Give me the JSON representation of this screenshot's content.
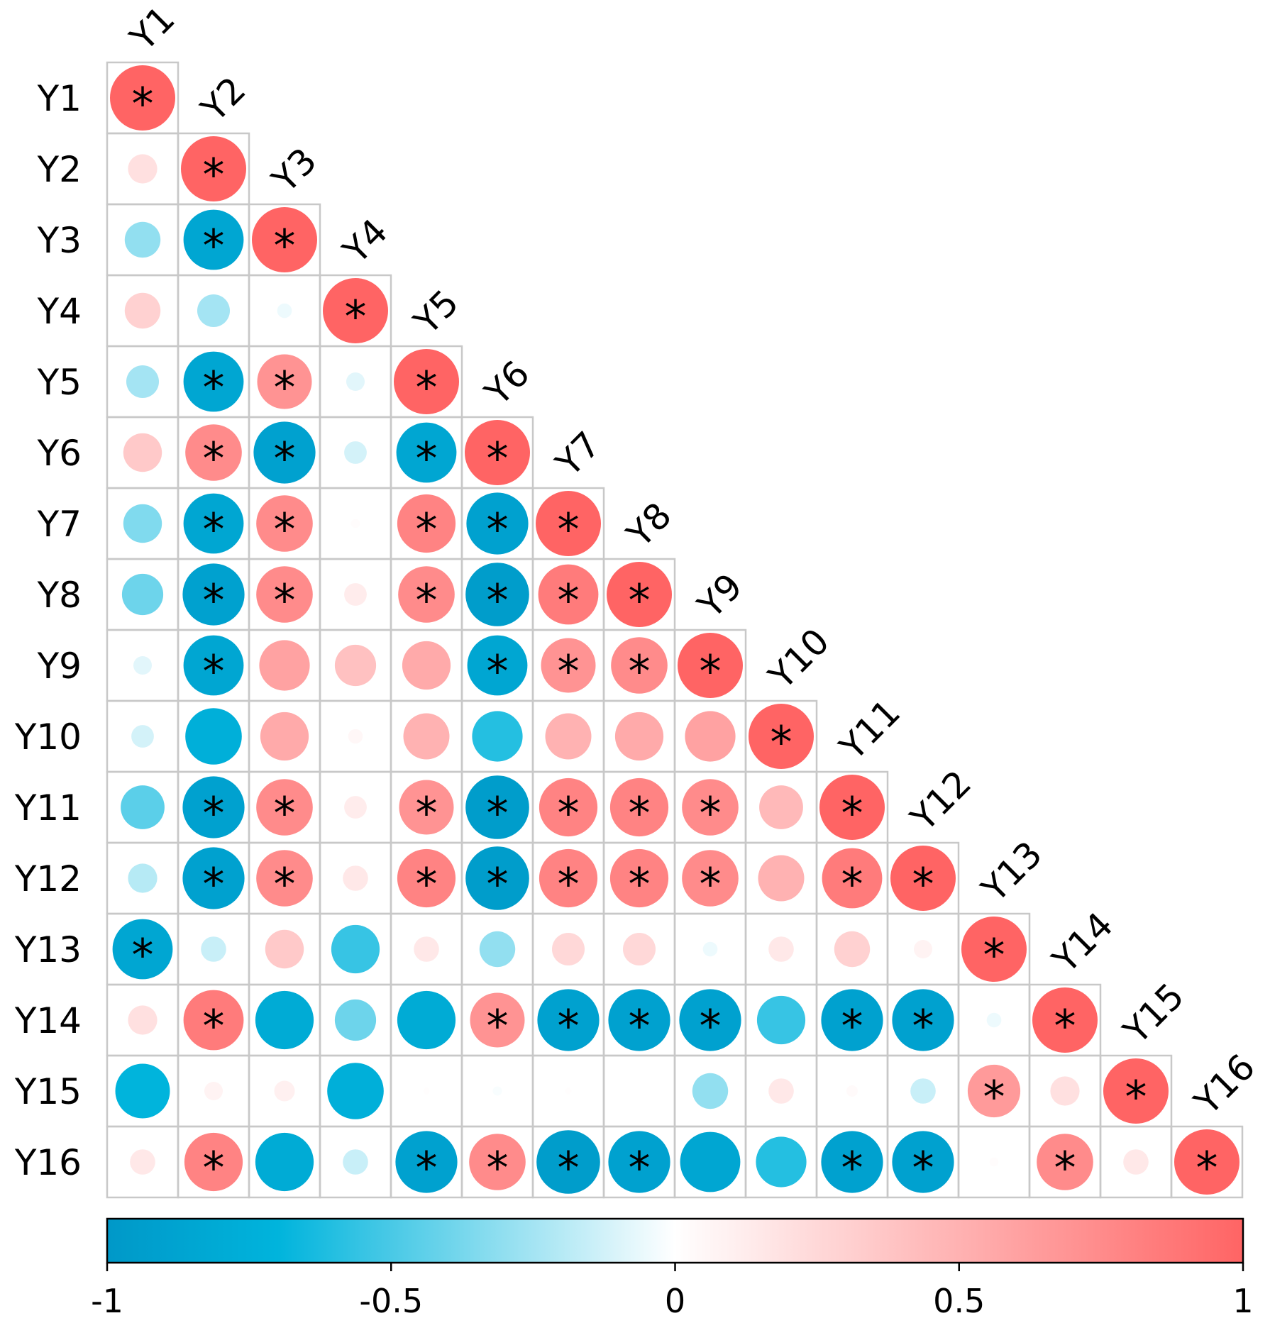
{
  "chart_data": {
    "type": "heatmap",
    "variables": [
      "Y1",
      "Y2",
      "Y3",
      "Y4",
      "Y5",
      "Y6",
      "Y7",
      "Y8",
      "Y9",
      "Y10",
      "Y11",
      "Y12",
      "Y13",
      "Y14",
      "Y15",
      "Y16"
    ],
    "matrix_lower": [
      [
        1
      ],
      [
        0.2,
        1
      ],
      [
        -0.3,
        -0.85,
        1
      ],
      [
        0.3,
        -0.25,
        -0.05,
        1
      ],
      [
        -0.25,
        -0.85,
        0.7,
        -0.08,
        1
      ],
      [
        0.35,
        0.75,
        -0.9,
        -0.12,
        -0.85,
        1
      ],
      [
        -0.35,
        -0.85,
        0.75,
        0.02,
        0.8,
        -0.9,
        1
      ],
      [
        -0.4,
        -0.9,
        0.75,
        0.12,
        0.75,
        -0.95,
        0.85,
        1
      ],
      [
        -0.08,
        -0.85,
        0.6,
        0.4,
        0.55,
        -0.85,
        0.7,
        0.75,
        1
      ],
      [
        -0.12,
        -0.75,
        0.55,
        0.05,
        0.5,
        -0.6,
        0.5,
        0.55,
        0.6,
        1
      ],
      [
        -0.45,
        -0.9,
        0.75,
        0.12,
        0.7,
        -0.95,
        0.8,
        0.8,
        0.75,
        0.45,
        1
      ],
      [
        -0.2,
        -0.9,
        0.75,
        0.15,
        0.8,
        -0.95,
        0.8,
        0.8,
        0.75,
        0.5,
        0.85,
        1
      ],
      [
        -0.85,
        -0.15,
        0.35,
        -0.55,
        0.15,
        -0.3,
        0.25,
        0.25,
        -0.05,
        0.15,
        0.3,
        0.08,
        1
      ],
      [
        0.2,
        0.85,
        -0.8,
        -0.4,
        -0.8,
        0.7,
        -0.9,
        -0.9,
        -0.9,
        -0.55,
        -0.9,
        -0.9,
        -0.05,
        1
      ],
      [
        -0.7,
        0.08,
        0.1,
        -0.75,
        0.01,
        -0.02,
        0.01,
        0,
        -0.3,
        0.15,
        0.03,
        -0.15,
        0.65,
        0.2,
        1
      ],
      [
        0.15,
        0.8,
        -0.8,
        -0.15,
        -0.9,
        0.75,
        -0.95,
        -0.9,
        -0.85,
        -0.6,
        -0.9,
        -0.9,
        0.02,
        0.75,
        0.15,
        1
      ]
    ],
    "significant_lower": [
      [
        1
      ],
      [
        0,
        1
      ],
      [
        0,
        1,
        1
      ],
      [
        0,
        0,
        0,
        1
      ],
      [
        0,
        1,
        1,
        0,
        1
      ],
      [
        0,
        1,
        1,
        0,
        1,
        1
      ],
      [
        0,
        1,
        1,
        0,
        1,
        1,
        1
      ],
      [
        0,
        1,
        1,
        0,
        1,
        1,
        1,
        1
      ],
      [
        0,
        1,
        0,
        0,
        0,
        1,
        1,
        1,
        1
      ],
      [
        0,
        0,
        0,
        0,
        0,
        0,
        0,
        0,
        0,
        1
      ],
      [
        0,
        1,
        1,
        0,
        1,
        1,
        1,
        1,
        1,
        0,
        1
      ],
      [
        0,
        1,
        1,
        0,
        1,
        1,
        1,
        1,
        1,
        0,
        1,
        1
      ],
      [
        1,
        0,
        0,
        0,
        0,
        0,
        0,
        0,
        0,
        0,
        0,
        0,
        1
      ],
      [
        0,
        1,
        0,
        0,
        0,
        1,
        1,
        1,
        1,
        0,
        1,
        1,
        0,
        1
      ],
      [
        0,
        0,
        0,
        0,
        0,
        0,
        0,
        0,
        0,
        0,
        0,
        0,
        1,
        0,
        1
      ],
      [
        0,
        1,
        0,
        0,
        1,
        1,
        1,
        1,
        0,
        0,
        1,
        1,
        0,
        1,
        0,
        1
      ]
    ],
    "significance_marker": "*",
    "colorbar": {
      "range": [
        -1,
        1
      ],
      "ticks": [
        -1,
        -0.5,
        0,
        0.5,
        1
      ],
      "tick_labels": [
        "-1",
        "-0.5",
        "0",
        "0.5",
        "1"
      ],
      "colors": {
        "negative": "#0098c8",
        "mid_negative": "#00b4dc",
        "zero": "#ffffff",
        "positive": "#ff6464"
      },
      "placement": "bottom"
    },
    "title": "",
    "xlabel": "",
    "ylabel": ""
  }
}
